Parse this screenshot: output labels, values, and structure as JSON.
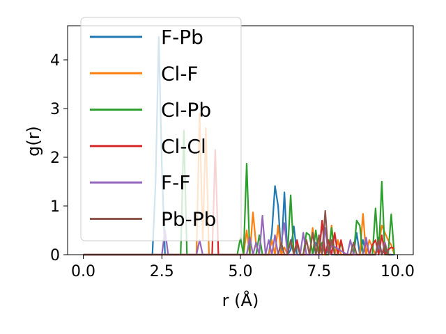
{
  "chart_data": {
    "type": "line",
    "xlabel": "r (Å)",
    "ylabel": "g(r)",
    "xlim": [
      -0.5,
      10.5
    ],
    "ylim": [
      0,
      4.7
    ],
    "xticks": [
      0.0,
      2.5,
      5.0,
      7.5,
      10.0
    ],
    "xtick_labels": [
      "0.0",
      "2.5",
      "5.0",
      "7.5",
      "10.0"
    ],
    "yticks": [
      0,
      1,
      2,
      3,
      4
    ],
    "ytick_labels": [
      "0",
      "1",
      "2",
      "3",
      "4"
    ],
    "grid": false,
    "legend_position": "top-left",
    "series": [
      {
        "name": "F-Pb",
        "color": "#1f77b4",
        "x": [
          0.0,
          2.2,
          2.3,
          2.4,
          2.5,
          2.6,
          2.8,
          5.9,
          6.0,
          6.1,
          6.2,
          6.3,
          6.4,
          6.5,
          6.6,
          6.7,
          6.8,
          6.9,
          7.3,
          7.4,
          7.5,
          7.6,
          7.7,
          7.8,
          7.9,
          8.0,
          8.6,
          8.7,
          8.8,
          8.9,
          9.0,
          9.3,
          9.4,
          9.5,
          9.6,
          9.7,
          9.8,
          9.9
        ],
        "y": [
          0.0,
          0.0,
          1.5,
          4.47,
          1.8,
          0.0,
          0.0,
          0.0,
          0.45,
          1.41,
          1.0,
          0.0,
          1.28,
          0.0,
          0.1,
          0.58,
          0.0,
          0.0,
          0.0,
          0.25,
          0.0,
          0.68,
          0.0,
          0.12,
          0.0,
          0.0,
          0.0,
          0.45,
          0.0,
          0.3,
          0.0,
          0.0,
          0.35,
          0.0,
          0.1,
          0.0,
          0.0,
          0.0
        ]
      },
      {
        "name": "Cl-F",
        "color": "#ff7f0e",
        "x": [
          0.0,
          3.6,
          3.7,
          3.8,
          3.9,
          4.0,
          4.1,
          5.1,
          5.2,
          5.3,
          5.4,
          5.5,
          5.6,
          5.9,
          6.0,
          6.1,
          6.2,
          6.3,
          6.4,
          6.5,
          7.0,
          7.1,
          7.2,
          7.3,
          7.4,
          7.5,
          7.6,
          7.8,
          7.9,
          8.0,
          8.1,
          8.2,
          8.3,
          8.8,
          8.9,
          9.0,
          9.1,
          9.3,
          9.4,
          9.5,
          9.6,
          9.7,
          9.8,
          9.9
        ],
        "y": [
          0.0,
          0.0,
          2.9,
          0.3,
          2.6,
          0.0,
          0.0,
          0.0,
          0.5,
          0.0,
          0.87,
          0.2,
          0.0,
          0.0,
          0.3,
          0.0,
          0.6,
          0.0,
          0.15,
          0.0,
          0.0,
          0.3,
          0.0,
          0.55,
          0.0,
          0.3,
          0.0,
          0.0,
          0.6,
          0.0,
          0.3,
          0.0,
          0.0,
          0.0,
          0.84,
          0.0,
          0.3,
          0.0,
          0.2,
          0.6,
          0.45,
          0.3,
          0.2,
          0.0
        ]
      },
      {
        "name": "Cl-Pb",
        "color": "#2ca02c",
        "x": [
          0.0,
          3.1,
          3.2,
          3.3,
          4.9,
          5.0,
          5.1,
          5.2,
          5.3,
          5.4,
          5.5,
          5.6,
          5.7,
          5.8,
          5.9,
          6.0,
          6.1,
          6.2,
          6.3,
          6.4,
          6.5,
          6.6,
          6.7,
          6.8,
          6.9,
          7.0,
          7.1,
          7.2,
          7.3,
          7.4,
          7.5,
          7.6,
          7.7,
          7.8,
          7.9,
          8.0,
          8.1,
          8.2,
          8.3,
          8.4,
          8.5,
          8.6,
          8.7,
          8.8,
          8.9,
          9.0,
          9.1,
          9.2,
          9.3,
          9.4,
          9.5,
          9.6,
          9.7,
          9.8,
          9.9
        ],
        "y": [
          0.0,
          0.0,
          2.55,
          0.0,
          0.0,
          0.35,
          0.0,
          1.87,
          0.0,
          0.0,
          0.0,
          0.4,
          0.0,
          0.0,
          0.0,
          0.0,
          0.0,
          0.0,
          0.0,
          0.0,
          0.0,
          1.22,
          0.0,
          0.0,
          0.0,
          0.0,
          0.45,
          0.4,
          0.0,
          0.5,
          0.0,
          0.25,
          0.0,
          0.0,
          0.55,
          0.0,
          0.0,
          0.25,
          0.0,
          0.0,
          0.0,
          0.0,
          0.7,
          0.6,
          0.0,
          0.0,
          0.0,
          0.0,
          0.95,
          0.0,
          1.5,
          0.0,
          0.0,
          0.83,
          0.0
        ]
      },
      {
        "name": "Cl-Cl",
        "color": "#d62728",
        "x": [
          0.0,
          4.1,
          4.2,
          4.3,
          6.7,
          6.8,
          6.9,
          7.5,
          7.6,
          7.7,
          7.8,
          7.9,
          8.0,
          8.1,
          8.2,
          8.3,
          8.9,
          9.0,
          9.1,
          9.2,
          9.3,
          9.4,
          9.5,
          9.6,
          9.7,
          9.8,
          9.9
        ],
        "y": [
          0.0,
          0.0,
          2.15,
          0.0,
          0.0,
          0.3,
          0.0,
          0.0,
          0.7,
          0.0,
          0.3,
          0.0,
          0.45,
          0.0,
          0.3,
          0.0,
          0.0,
          0.3,
          0.0,
          0.2,
          0.3,
          0.0,
          0.4,
          0.0,
          0.1,
          0.15,
          0.13
        ]
      },
      {
        "name": "F-F",
        "color": "#9467bd",
        "x": [
          0.0,
          2.5,
          2.6,
          2.7,
          3.6,
          3.7,
          3.8,
          5.2,
          5.3,
          5.4,
          5.5,
          5.6,
          5.7,
          5.8,
          5.9,
          6.0,
          6.1,
          6.2,
          6.3,
          6.4,
          6.5,
          6.9,
          7.0,
          7.1,
          7.6,
          7.7,
          7.8,
          7.9,
          8.4,
          8.5,
          8.6,
          8.9,
          9.0,
          9.1,
          9.3,
          9.4,
          9.5,
          9.6,
          9.7,
          9.8
        ],
        "y": [
          0.0,
          0.0,
          0.5,
          0.0,
          0.0,
          0.3,
          0.0,
          0.0,
          0.35,
          0.0,
          0.25,
          0.0,
          0.8,
          0.0,
          0.3,
          0.0,
          0.4,
          0.0,
          0.25,
          0.65,
          0.0,
          0.0,
          0.45,
          0.0,
          0.0,
          0.55,
          0.0,
          0.2,
          0.0,
          0.3,
          0.0,
          0.0,
          0.35,
          0.0,
          0.0,
          0.2,
          0.0,
          0.25,
          0.0,
          0.0
        ]
      },
      {
        "name": "Pb-Pb",
        "color": "#8c564b",
        "x": [
          0.0,
          6.2,
          6.3,
          6.4,
          6.5,
          6.6,
          6.7,
          6.8,
          6.9,
          7.0,
          7.1,
          7.2,
          7.3,
          7.4,
          7.5,
          7.6,
          7.7,
          7.8,
          7.9,
          8.0,
          8.5,
          8.6,
          8.7,
          9.3,
          9.4,
          9.5,
          9.6,
          9.7,
          9.8
        ],
        "y": [
          0.0,
          0.0,
          0.25,
          0.0,
          0.0,
          0.3,
          0.0,
          0.2,
          0.0,
          0.0,
          0.3,
          0.0,
          0.45,
          0.0,
          0.4,
          0.0,
          0.9,
          0.0,
          0.3,
          0.0,
          0.0,
          0.25,
          0.0,
          0.0,
          0.3,
          0.0,
          0.2,
          0.0,
          0.0
        ]
      }
    ]
  }
}
